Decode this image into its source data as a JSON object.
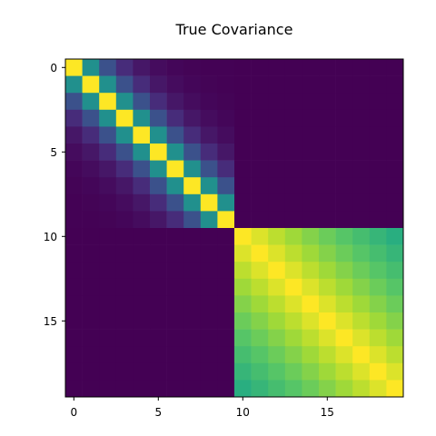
{
  "chart_data": {
    "type": "heatmap",
    "title": "True Covariance",
    "xlabel": "",
    "ylabel": "",
    "size": 20,
    "grid": false,
    "colormap": "viridis",
    "value_range": [
      0,
      1
    ],
    "x_ticks": [
      0,
      5,
      10,
      15
    ],
    "y_ticks": [
      0,
      5,
      10,
      15
    ],
    "x_tick_labels": [
      "0",
      "5",
      "10",
      "15"
    ],
    "y_tick_labels": [
      "0",
      "5",
      "10",
      "15"
    ],
    "blocks": [
      {
        "rows": [
          0,
          9
        ],
        "cols": [
          0,
          9
        ],
        "correlation": 0.5
      },
      {
        "rows": [
          10,
          19
        ],
        "cols": [
          10,
          19
        ],
        "correlation": 0.95
      }
    ],
    "off_block_value": 0
  }
}
